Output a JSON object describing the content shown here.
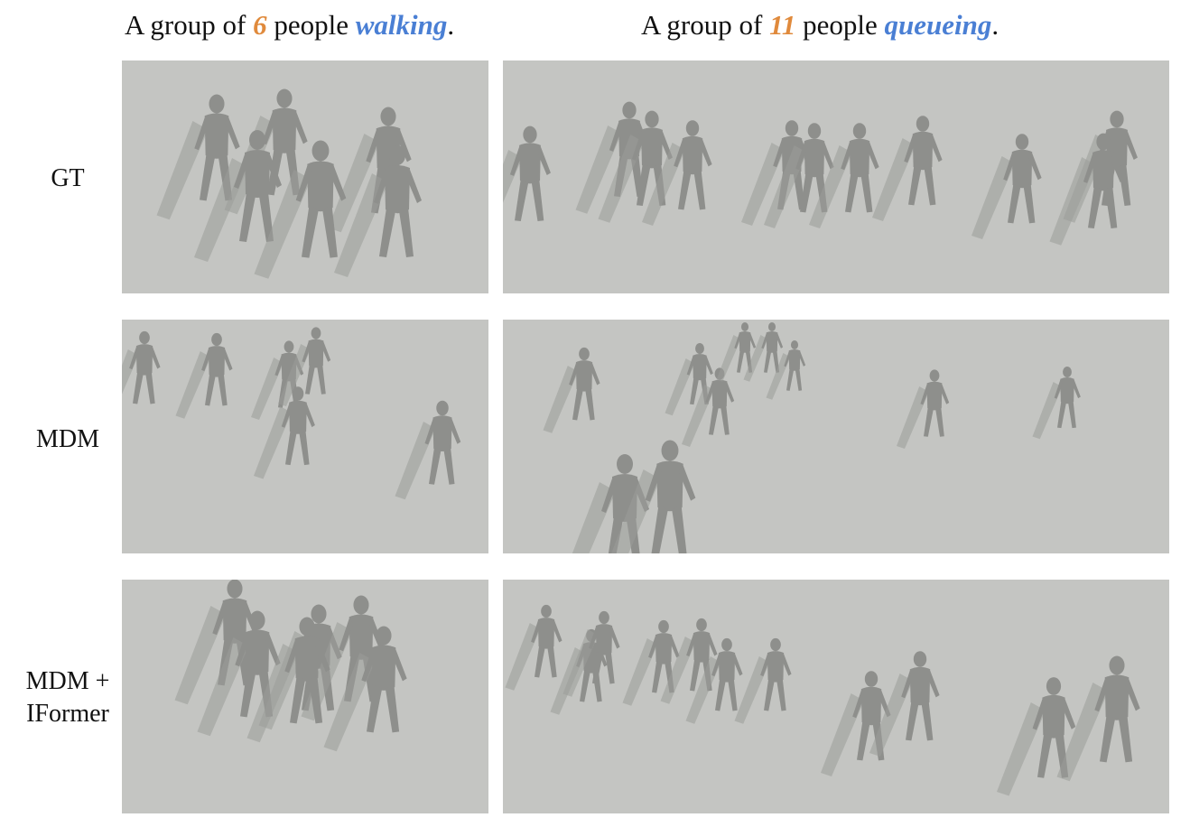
{
  "columns": [
    {
      "prefix": "A group of ",
      "count": "6",
      "middle": " people ",
      "action": "walking",
      "suffix": "."
    },
    {
      "prefix": "A group of ",
      "count": "11",
      "middle": " people ",
      "action": "queueing",
      "suffix": "."
    }
  ],
  "rows": [
    {
      "label": "GT"
    },
    {
      "label": "MDM"
    },
    {
      "label_line1": "MDM +",
      "label_line2": "IFormer"
    }
  ],
  "colors": {
    "title_count": "#e08a3c",
    "title_action": "#4a7fd4",
    "panel_bg": "#c4c5c2",
    "figure": "#8e8f8c",
    "shadow": "#9b9c99"
  }
}
